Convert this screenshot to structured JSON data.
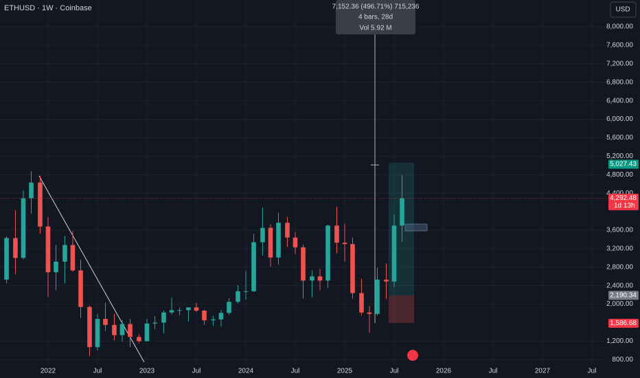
{
  "chart_data": {
    "type": "candlestick",
    "title": "ETHUSD · 1W · Coinbase",
    "currency": "USD",
    "tooltip": [
      "7,152.36 (496.71%) 715,236",
      "4 bars, 28d",
      "Vol 5.92 M"
    ],
    "up_color": "#26a69a",
    "down_color": "#ef5350",
    "grid": true,
    "x": [
      2021.58,
      2021.67,
      2021.75,
      2021.83,
      2021.92,
      2022.0,
      2022.08,
      2022.17,
      2022.25,
      2022.33,
      2022.42,
      2022.5,
      2022.58,
      2022.67,
      2022.75,
      2022.83,
      2022.92,
      2023.0,
      2023.08,
      2023.17,
      2023.25,
      2023.33,
      2023.42,
      2023.5,
      2023.58,
      2023.67,
      2023.75,
      2023.83,
      2023.92,
      2024.0,
      2024.08,
      2024.17,
      2024.25,
      2024.33,
      2024.42,
      2024.5,
      2024.58,
      2024.67,
      2024.75,
      2024.83,
      2024.92,
      2025.0,
      2025.08,
      2025.17,
      2025.25,
      2025.33,
      2025.42,
      2025.5,
      2025.58
    ],
    "open": [
      2530,
      3430,
      3000,
      4290,
      4630,
      3680,
      2690,
      2920,
      3280,
      2730,
      1940,
      1070,
      1680,
      1550,
      1330,
      1570,
      1290,
      1200,
      1580,
      1600,
      1820,
      1870,
      1870,
      1930,
      1860,
      1650,
      1670,
      1810,
      2050,
      2280,
      2280,
      3340,
      3650,
      3010,
      3760,
      3440,
      3230,
      2510,
      2600,
      2510,
      3700,
      3330,
      3300,
      2240,
      1820,
      1790,
      2530,
      2490,
      3700
    ],
    "high": [
      3470,
      4030,
      4460,
      4870,
      4780,
      3880,
      3280,
      3480,
      3580,
      2960,
      1970,
      1790,
      2030,
      1790,
      1660,
      1680,
      1350,
      1680,
      1740,
      1860,
      2140,
      1930,
      1930,
      2030,
      1880,
      1750,
      1870,
      2130,
      2410,
      2720,
      3520,
      4090,
      3730,
      3980,
      3890,
      3560,
      3290,
      2730,
      2760,
      3720,
      4110,
      3740,
      3440,
      2550,
      1960,
      2790,
      2880,
      3940,
      4790
    ],
    "low": [
      2450,
      2650,
      2970,
      3960,
      3520,
      2160,
      2300,
      2450,
      2700,
      1700,
      880,
      1000,
      1420,
      1220,
      1190,
      1070,
      1160,
      1190,
      1460,
      1370,
      1780,
      1760,
      1620,
      1830,
      1550,
      1530,
      1520,
      1770,
      2020,
      2100,
      2260,
      3050,
      2810,
      2860,
      3240,
      3080,
      2120,
      2150,
      2300,
      2350,
      3100,
      2920,
      2120,
      1760,
      1380,
      1750,
      2110,
      2370,
      3350
    ],
    "close": [
      3430,
      3000,
      4290,
      4630,
      3680,
      2690,
      2920,
      3280,
      2730,
      1940,
      1070,
      1680,
      1550,
      1330,
      1570,
      1290,
      1200,
      1580,
      1600,
      1820,
      1870,
      1870,
      1930,
      1860,
      1650,
      1670,
      1810,
      2050,
      2280,
      2280,
      3340,
      3650,
      3010,
      3760,
      3440,
      3230,
      2510,
      2600,
      2510,
      3700,
      3330,
      3300,
      2240,
      1820,
      1790,
      2530,
      2490,
      3700,
      4292.48
    ],
    "xlim": [
      2021.514,
      2027.66
    ],
    "ylim": [
      700,
      8580
    ],
    "xticks": [
      {
        "value": 2022,
        "label": "2022"
      },
      {
        "value": 2022.5,
        "label": "Jul"
      },
      {
        "value": 2023,
        "label": "2023"
      },
      {
        "value": 2023.5,
        "label": "Jul"
      },
      {
        "value": 2024,
        "label": "2024"
      },
      {
        "value": 2024.5,
        "label": "Jul"
      },
      {
        "value": 2025,
        "label": "2025"
      },
      {
        "value": 2025.5,
        "label": "Jul"
      },
      {
        "value": 2026,
        "label": "2026"
      },
      {
        "value": 2026.5,
        "label": "Jul"
      },
      {
        "value": 2027,
        "label": "2027"
      },
      {
        "value": 2027.5,
        "label": "Jul"
      }
    ],
    "yticks": [
      {
        "value": 800,
        "label": "800.00"
      },
      {
        "value": 1200,
        "label": "1,200.00"
      },
      {
        "value": 2000,
        "label": "2,000.00"
      },
      {
        "value": 2400,
        "label": "2,400.00"
      },
      {
        "value": 2800,
        "label": "2,800.00"
      },
      {
        "value": 3200,
        "label": "3,200.00"
      },
      {
        "value": 3600,
        "label": "3,600.00"
      },
      {
        "value": 4400,
        "label": "4,400.00"
      },
      {
        "value": 4800,
        "label": "4,800.00"
      },
      {
        "value": 5200,
        "label": "5,200.00"
      },
      {
        "value": 5600,
        "label": "5,600.00"
      },
      {
        "value": 6000,
        "label": "6,000.00"
      },
      {
        "value": 6400,
        "label": "6,400.00"
      },
      {
        "value": 6800,
        "label": "6,800.00"
      },
      {
        "value": 7200,
        "label": "7,200.00"
      },
      {
        "value": 7600,
        "label": "7,600.00"
      },
      {
        "value": 8000,
        "label": "8,000.00"
      }
    ],
    "price_labels": [
      {
        "value": 5027.43,
        "label": "5,027.43",
        "color": "#089981"
      },
      {
        "value": 4292.48,
        "label": "4,292.48",
        "color": "#f23645",
        "note": "1d 13h"
      },
      {
        "value": 2190.34,
        "label": "2,190.34",
        "color": "#787b86"
      },
      {
        "value": 1586.68,
        "label": "1,586.68",
        "color": "#f23645"
      }
    ]
  }
}
